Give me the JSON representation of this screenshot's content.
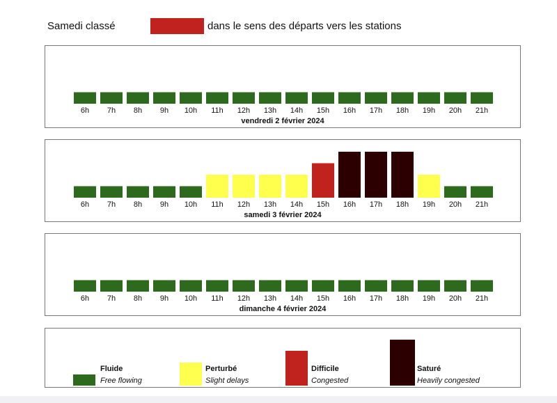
{
  "header": {
    "title": "Samedi classé",
    "description": "dans le sens des départs vers les stations",
    "swatch_color": "#c0221e"
  },
  "chart_data": [
    {
      "type": "bar",
      "title": "vendredi 2 février 2024",
      "categories": [
        "6h",
        "7h",
        "8h",
        "9h",
        "10h",
        "11h",
        "12h",
        "13h",
        "14h",
        "15h",
        "16h",
        "17h",
        "18h",
        "19h",
        "20h",
        "21h"
      ],
      "values": [
        1,
        1,
        1,
        1,
        1,
        1,
        1,
        1,
        1,
        1,
        1,
        1,
        1,
        1,
        1,
        1
      ],
      "ylim": [
        0,
        4
      ]
    },
    {
      "type": "bar",
      "title": "samedi 3 février 2024",
      "categories": [
        "6h",
        "7h",
        "8h",
        "9h",
        "10h",
        "11h",
        "12h",
        "13h",
        "14h",
        "15h",
        "16h",
        "17h",
        "18h",
        "19h",
        "20h",
        "21h"
      ],
      "values": [
        1,
        1,
        1,
        1,
        1,
        2,
        2,
        2,
        2,
        3,
        4,
        4,
        4,
        2,
        1,
        1
      ],
      "ylim": [
        0,
        4
      ]
    },
    {
      "type": "bar",
      "title": "dimanche 4 février 2024",
      "categories": [
        "6h",
        "7h",
        "8h",
        "9h",
        "10h",
        "11h",
        "12h",
        "13h",
        "14h",
        "15h",
        "16h",
        "17h",
        "18h",
        "19h",
        "20h",
        "21h"
      ],
      "values": [
        1,
        1,
        1,
        1,
        1,
        1,
        1,
        1,
        1,
        1,
        1,
        1,
        1,
        1,
        1,
        1
      ],
      "ylim": [
        0,
        4
      ]
    }
  ],
  "levels": [
    {
      "value": 1,
      "name": "Fluide",
      "desc": "Free flowing",
      "color": "#2d6a1e",
      "icon": "green-swatch"
    },
    {
      "value": 2,
      "name": "Perturbé",
      "desc": "Slight delays",
      "color": "#ffff4d",
      "icon": "yellow-swatch"
    },
    {
      "value": 3,
      "name": "Difficile",
      "desc": "Congested",
      "color": "#c0221e",
      "icon": "red-swatch"
    },
    {
      "value": 4,
      "name": "Saturé",
      "desc": "Heavily congested",
      "color": "#2c0000",
      "icon": "dark-red-swatch"
    }
  ]
}
